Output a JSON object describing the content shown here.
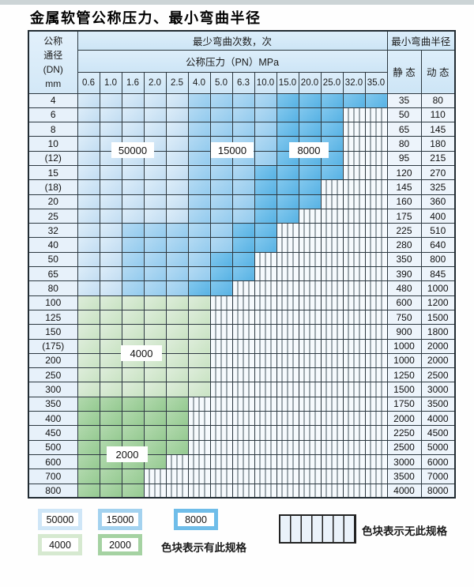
{
  "title": "金属软管公称压力、最小弯曲半径",
  "colors": {
    "c50000": "#cfe6f7",
    "c15000": "#a3d2ef",
    "c8000": "#6fbde9",
    "c4000": "#d6e9d0",
    "c2000": "#a5d2a2",
    "no_spec_bg": "#f6fafd",
    "grid": "#2c3840",
    "header_bg": "#d5e9f7"
  },
  "table": {
    "header": {
      "dn_lines": [
        "公称",
        "通径",
        "(DN)",
        "mm"
      ],
      "bend_count": "最少弯曲次数，次",
      "pressure": "公称压力（PN）MPa",
      "pressures": [
        "0.6",
        "1.0",
        "1.6",
        "2.0",
        "2.5",
        "4.0",
        "5.0",
        "6.3",
        "10.0",
        "15.0",
        "20.0",
        "25.0",
        "32.0",
        "35.0"
      ],
      "radius": "最小弯曲半径",
      "static": "静 态",
      "dynamic": "动 态"
    },
    "cell_codes": {
      "A": "50000",
      "B": "15000",
      "C": "8000",
      "D": "4000",
      "E": "2000",
      ".": "no-spec"
    },
    "rows": [
      {
        "dn": "4",
        "pattern": "AAAAABBBBCCCCC",
        "static": "35",
        "dynamic": "80"
      },
      {
        "dn": "6",
        "pattern": "AAAAABBBBCCC..",
        "static": "50",
        "dynamic": "110"
      },
      {
        "dn": "8",
        "pattern": "AAAAABBBBCCC..",
        "static": "65",
        "dynamic": "145"
      },
      {
        "dn": "10",
        "pattern": "AAAAABBBBCCC..",
        "static": "80",
        "dynamic": "180"
      },
      {
        "dn": "(12)",
        "pattern": "AAAAABBBBCCC..",
        "static": "95",
        "dynamic": "215"
      },
      {
        "dn": "15",
        "pattern": "AAAAABBBCCCC..",
        "static": "120",
        "dynamic": "270"
      },
      {
        "dn": "(18)",
        "pattern": "AAAAABBBCCC...",
        "static": "145",
        "dynamic": "325"
      },
      {
        "dn": "20",
        "pattern": "AAAAABBBCCC...",
        "static": "160",
        "dynamic": "360"
      },
      {
        "dn": "25",
        "pattern": "AAAAABBBCC....",
        "static": "175",
        "dynamic": "400"
      },
      {
        "dn": "32",
        "pattern": "AABBBBBCC.....",
        "static": "225",
        "dynamic": "510"
      },
      {
        "dn": "40",
        "pattern": "AABBBBBCC.....",
        "static": "280",
        "dynamic": "640"
      },
      {
        "dn": "50",
        "pattern": "AABBBBCC......",
        "static": "350",
        "dynamic": "800"
      },
      {
        "dn": "65",
        "pattern": "AABBBBCC......",
        "static": "390",
        "dynamic": "845"
      },
      {
        "dn": "80",
        "pattern": "AABBBCC.......",
        "static": "480",
        "dynamic": "1000"
      },
      {
        "dn": "100",
        "pattern": "DDDDDD........",
        "static": "600",
        "dynamic": "1200"
      },
      {
        "dn": "125",
        "pattern": "DDDDDD........",
        "static": "750",
        "dynamic": "1500"
      },
      {
        "dn": "150",
        "pattern": "DDDDDD........",
        "static": "900",
        "dynamic": "1800"
      },
      {
        "dn": "(175)",
        "pattern": "DDDDDD........",
        "static": "1000",
        "dynamic": "2000"
      },
      {
        "dn": "200",
        "pattern": "DDDDDD........",
        "static": "1000",
        "dynamic": "2000"
      },
      {
        "dn": "250",
        "pattern": "DDDDDD........",
        "static": "1250",
        "dynamic": "2500"
      },
      {
        "dn": "300",
        "pattern": "DDDDDD........",
        "static": "1500",
        "dynamic": "3000"
      },
      {
        "dn": "350",
        "pattern": "EEEEE.........",
        "static": "1750",
        "dynamic": "3500"
      },
      {
        "dn": "400",
        "pattern": "EEEEE.........",
        "static": "2000",
        "dynamic": "4000"
      },
      {
        "dn": "450",
        "pattern": "EEEEE.........",
        "static": "2250",
        "dynamic": "4500"
      },
      {
        "dn": "500",
        "pattern": "EEEEE.........",
        "static": "2500",
        "dynamic": "5000"
      },
      {
        "dn": "600",
        "pattern": "EEEE..........",
        "static": "3000",
        "dynamic": "6000"
      },
      {
        "dn": "700",
        "pattern": "EEE...........",
        "static": "3500",
        "dynamic": "7000"
      },
      {
        "dn": "800",
        "pattern": "EEE...........",
        "static": "4000",
        "dynamic": "8000"
      }
    ]
  },
  "zone_labels": [
    {
      "id": "b50000",
      "text": "50000"
    },
    {
      "id": "b15000",
      "text": "15000"
    },
    {
      "id": "b8000",
      "text": "8000"
    },
    {
      "id": "g4000",
      "text": "4000"
    },
    {
      "id": "g2000",
      "text": "2000"
    }
  ],
  "legend": {
    "swatches": [
      {
        "value": "50000",
        "type": "blue-light"
      },
      {
        "value": "15000",
        "type": "blue-mid"
      },
      {
        "value": "8000",
        "type": "blue-dark"
      },
      {
        "value": "4000",
        "type": "green-light"
      },
      {
        "value": "2000",
        "type": "green-mid"
      }
    ],
    "has_spec_text": "色块表示有此规格",
    "no_spec_text": "色块表示无此规格"
  }
}
